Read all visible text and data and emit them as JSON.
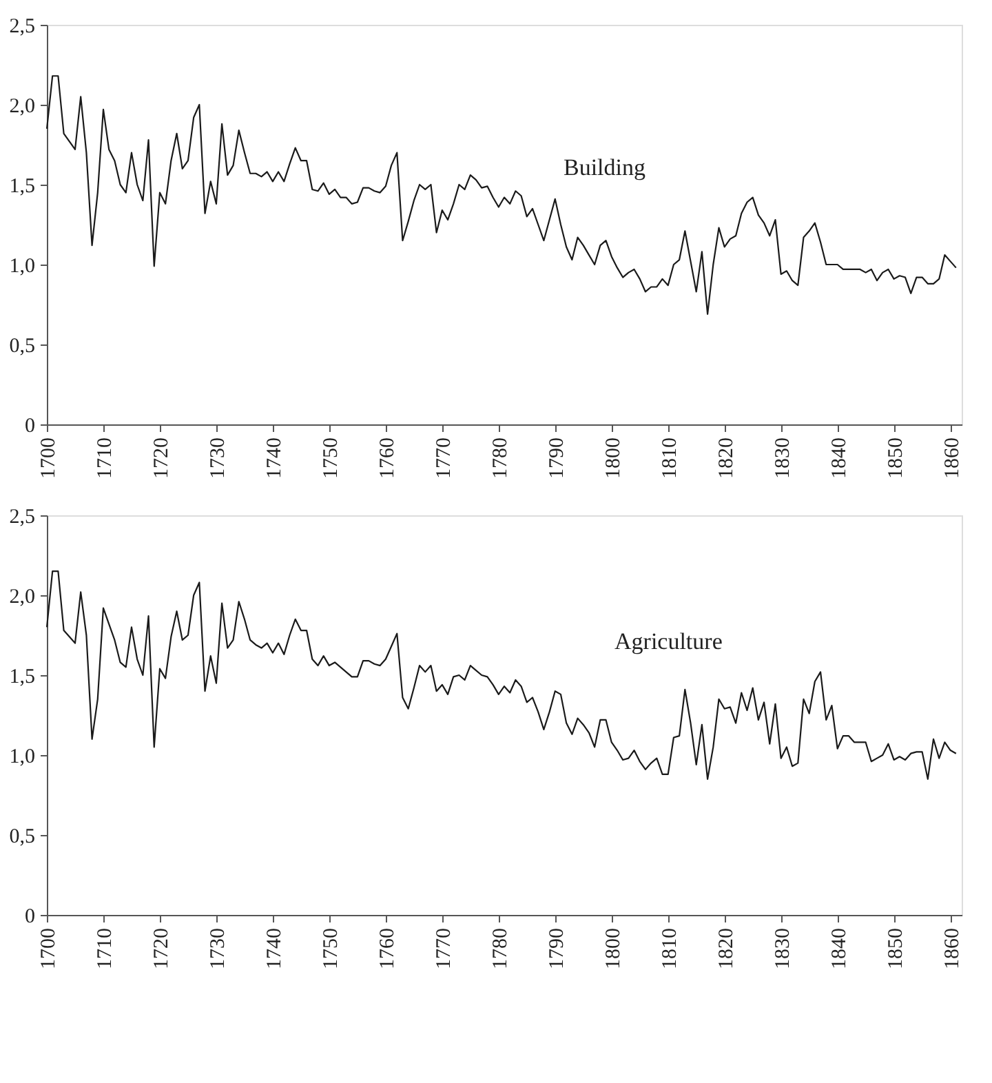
{
  "chart_data": [
    {
      "type": "line",
      "xlim": [
        1700,
        1862
      ],
      "xticks": [
        1700,
        1710,
        1720,
        1730,
        1740,
        1750,
        1760,
        1770,
        1780,
        1790,
        1800,
        1810,
        1820,
        1830,
        1840,
        1850,
        1860
      ],
      "ylim": [
        0,
        2.5
      ],
      "yticks": [
        0,
        {
          "value": 0.5,
          "label": "0,5"
        },
        {
          "value": 1.0,
          "label": "1,0"
        },
        {
          "value": 1.5,
          "label": "1,5"
        },
        {
          "value": 2.0,
          "label": "2,0"
        },
        {
          "value": 2.5,
          "label": "2,5"
        }
      ],
      "grid": false,
      "legend": false,
      "marker": "none",
      "line_style": "solid",
      "x": [
        1700,
        1701,
        1702,
        1703,
        1704,
        1705,
        1706,
        1707,
        1708,
        1709,
        1710,
        1711,
        1712,
        1713,
        1714,
        1715,
        1716,
        1717,
        1718,
        1719,
        1720,
        1721,
        1722,
        1723,
        1724,
        1725,
        1726,
        1727,
        1728,
        1729,
        1730,
        1731,
        1732,
        1733,
        1734,
        1735,
        1736,
        1737,
        1738,
        1739,
        1740,
        1741,
        1742,
        1743,
        1744,
        1745,
        1746,
        1747,
        1748,
        1749,
        1750,
        1751,
        1752,
        1753,
        1754,
        1755,
        1756,
        1757,
        1758,
        1759,
        1760,
        1761,
        1762,
        1763,
        1764,
        1765,
        1766,
        1767,
        1768,
        1769,
        1770,
        1771,
        1772,
        1773,
        1774,
        1775,
        1776,
        1777,
        1778,
        1779,
        1780,
        1781,
        1782,
        1783,
        1784,
        1785,
        1786,
        1787,
        1788,
        1789,
        1790,
        1791,
        1792,
        1793,
        1794,
        1795,
        1796,
        1797,
        1798,
        1799,
        1800,
        1801,
        1802,
        1803,
        1804,
        1805,
        1806,
        1807,
        1808,
        1809,
        1810,
        1811,
        1812,
        1813,
        1814,
        1815,
        1816,
        1817,
        1818,
        1819,
        1820,
        1821,
        1822,
        1823,
        1824,
        1825,
        1826,
        1827,
        1828,
        1829,
        1830,
        1831,
        1832,
        1833,
        1834,
        1835,
        1836,
        1837,
        1838,
        1839,
        1840,
        1841,
        1842,
        1843,
        1844,
        1845,
        1846,
        1847,
        1848,
        1849,
        1850,
        1851,
        1852,
        1853,
        1854,
        1855,
        1856,
        1857,
        1858,
        1859,
        1860,
        1861
      ],
      "series": [
        {
          "name": "Building",
          "color": "#1a1a1a",
          "values": [
            1.85,
            2.18,
            2.18,
            1.82,
            1.77,
            1.72,
            2.05,
            1.7,
            1.12,
            1.45,
            1.97,
            1.72,
            1.65,
            1.5,
            1.45,
            1.7,
            1.5,
            1.4,
            1.78,
            0.99,
            1.45,
            1.38,
            1.65,
            1.82,
            1.6,
            1.65,
            1.92,
            2.0,
            1.32,
            1.52,
            1.38,
            1.88,
            1.56,
            1.62,
            1.84,
            1.7,
            1.57,
            1.57,
            1.55,
            1.58,
            1.52,
            1.58,
            1.52,
            1.63,
            1.73,
            1.65,
            1.65,
            1.47,
            1.46,
            1.51,
            1.44,
            1.47,
            1.42,
            1.42,
            1.38,
            1.39,
            1.48,
            1.48,
            1.46,
            1.45,
            1.49,
            1.62,
            1.7,
            1.15,
            1.27,
            1.4,
            1.5,
            1.47,
            1.5,
            1.2,
            1.34,
            1.28,
            1.38,
            1.5,
            1.47,
            1.56,
            1.53,
            1.48,
            1.49,
            1.42,
            1.36,
            1.42,
            1.38,
            1.46,
            1.43,
            1.3,
            1.35,
            1.25,
            1.15,
            1.28,
            1.41,
            1.25,
            1.11,
            1.03,
            1.17,
            1.12,
            1.06,
            1.0,
            1.12,
            1.15,
            1.05,
            0.98,
            0.92,
            0.95,
            0.97,
            0.91,
            0.83,
            0.86,
            0.86,
            0.91,
            0.87,
            1.0,
            1.03,
            1.21,
            1.02,
            0.83,
            1.08,
            0.69,
            1.0,
            1.23,
            1.11,
            1.16,
            1.18,
            1.32,
            1.39,
            1.42,
            1.31,
            1.26,
            1.18,
            1.28,
            0.94,
            0.96,
            0.9,
            0.87,
            1.17,
            1.21,
            1.26,
            1.14,
            1.0,
            1.0,
            1.0,
            0.97,
            0.97,
            0.97,
            0.97,
            0.95,
            0.97,
            0.9,
            0.95,
            0.97,
            0.91,
            0.93,
            0.92,
            0.82,
            0.92,
            0.92,
            0.88,
            0.88,
            0.91,
            1.06,
            1.02,
            0.98
          ]
        }
      ]
    },
    {
      "type": "line",
      "xlim": [
        1700,
        1862
      ],
      "xticks": [
        1700,
        1710,
        1720,
        1730,
        1740,
        1750,
        1760,
        1770,
        1780,
        1790,
        1800,
        1810,
        1820,
        1830,
        1840,
        1850,
        1860
      ],
      "ylim": [
        0,
        2.5
      ],
      "yticks": [
        0,
        {
          "value": 0.5,
          "label": "0,5"
        },
        {
          "value": 1.0,
          "label": "1,0"
        },
        {
          "value": 1.5,
          "label": "1,5"
        },
        {
          "value": 2.0,
          "label": "2,0"
        },
        {
          "value": 2.5,
          "label": "2,5"
        }
      ],
      "grid": false,
      "legend": false,
      "marker": "none",
      "line_style": "solid",
      "x": [
        1700,
        1701,
        1702,
        1703,
        1704,
        1705,
        1706,
        1707,
        1708,
        1709,
        1710,
        1711,
        1712,
        1713,
        1714,
        1715,
        1716,
        1717,
        1718,
        1719,
        1720,
        1721,
        1722,
        1723,
        1724,
        1725,
        1726,
        1727,
        1728,
        1729,
        1730,
        1731,
        1732,
        1733,
        1734,
        1735,
        1736,
        1737,
        1738,
        1739,
        1740,
        1741,
        1742,
        1743,
        1744,
        1745,
        1746,
        1747,
        1748,
        1749,
        1750,
        1751,
        1752,
        1753,
        1754,
        1755,
        1756,
        1757,
        1758,
        1759,
        1760,
        1761,
        1762,
        1763,
        1764,
        1765,
        1766,
        1767,
        1768,
        1769,
        1770,
        1771,
        1772,
        1773,
        1774,
        1775,
        1776,
        1777,
        1778,
        1779,
        1780,
        1781,
        1782,
        1783,
        1784,
        1785,
        1786,
        1787,
        1788,
        1789,
        1790,
        1791,
        1792,
        1793,
        1794,
        1795,
        1796,
        1797,
        1798,
        1799,
        1800,
        1801,
        1802,
        1803,
        1804,
        1805,
        1806,
        1807,
        1808,
        1809,
        1810,
        1811,
        1812,
        1813,
        1814,
        1815,
        1816,
        1817,
        1818,
        1819,
        1820,
        1821,
        1822,
        1823,
        1824,
        1825,
        1826,
        1827,
        1828,
        1829,
        1830,
        1831,
        1832,
        1833,
        1834,
        1835,
        1836,
        1837,
        1838,
        1839,
        1840,
        1841,
        1842,
        1843,
        1844,
        1845,
        1846,
        1847,
        1848,
        1849,
        1850,
        1851,
        1852,
        1853,
        1854,
        1855,
        1856,
        1857,
        1858,
        1859,
        1860,
        1861
      ],
      "series": [
        {
          "name": "Agriculture",
          "color": "#1a1a1a",
          "values": [
            1.8,
            2.15,
            2.15,
            1.78,
            1.74,
            1.7,
            2.02,
            1.75,
            1.1,
            1.35,
            1.92,
            1.82,
            1.72,
            1.58,
            1.55,
            1.8,
            1.6,
            1.5,
            1.87,
            1.05,
            1.54,
            1.48,
            1.74,
            1.9,
            1.72,
            1.75,
            2.0,
            2.08,
            1.4,
            1.62,
            1.45,
            1.95,
            1.67,
            1.72,
            1.96,
            1.85,
            1.72,
            1.69,
            1.67,
            1.7,
            1.64,
            1.7,
            1.63,
            1.75,
            1.85,
            1.78,
            1.78,
            1.6,
            1.56,
            1.62,
            1.56,
            1.58,
            1.55,
            1.52,
            1.49,
            1.49,
            1.59,
            1.59,
            1.57,
            1.56,
            1.6,
            1.68,
            1.76,
            1.36,
            1.29,
            1.42,
            1.56,
            1.52,
            1.56,
            1.4,
            1.44,
            1.38,
            1.49,
            1.5,
            1.47,
            1.56,
            1.53,
            1.5,
            1.49,
            1.44,
            1.38,
            1.43,
            1.39,
            1.47,
            1.43,
            1.33,
            1.36,
            1.27,
            1.16,
            1.27,
            1.4,
            1.38,
            1.2,
            1.13,
            1.23,
            1.19,
            1.14,
            1.05,
            1.22,
            1.22,
            1.08,
            1.03,
            0.97,
            0.98,
            1.03,
            0.96,
            0.91,
            0.95,
            0.98,
            0.88,
            0.88,
            1.11,
            1.12,
            1.41,
            1.2,
            0.94,
            1.19,
            0.85,
            1.05,
            1.35,
            1.29,
            1.3,
            1.2,
            1.39,
            1.28,
            1.42,
            1.22,
            1.33,
            1.07,
            1.32,
            0.98,
            1.05,
            0.93,
            0.95,
            1.35,
            1.26,
            1.46,
            1.52,
            1.22,
            1.31,
            1.04,
            1.12,
            1.12,
            1.08,
            1.08,
            1.08,
            0.96,
            0.98,
            1.0,
            1.07,
            0.97,
            0.99,
            0.97,
            1.01,
            1.02,
            1.02,
            0.85,
            1.1,
            0.98,
            1.08,
            1.03,
            1.01
          ]
        }
      ]
    }
  ]
}
